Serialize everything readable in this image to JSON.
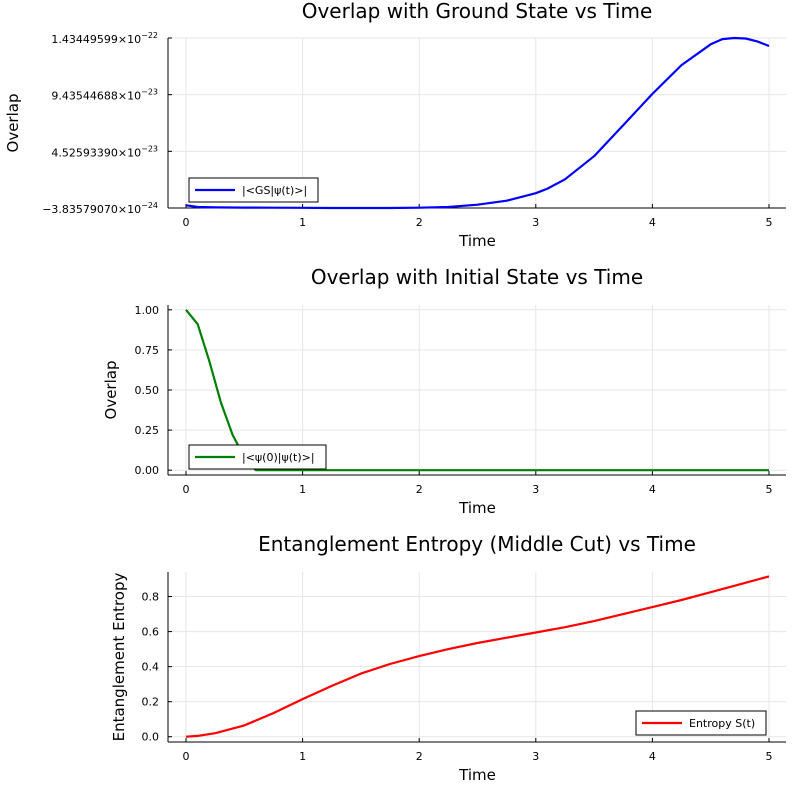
{
  "chart_data": [
    {
      "type": "line",
      "title": "Overlap with Ground State vs Time",
      "xlabel": "Time",
      "ylabel": "Overlap",
      "xlim": [
        0,
        5
      ],
      "ylim": [
        -3.8357907e-24,
        1.43449599e-22
      ],
      "x_ticks": [
        0,
        1,
        2,
        3,
        4,
        5
      ],
      "y_ticks": [
        {
          "value": -3.8357907e-24,
          "mantissa": "−3.83579070×10",
          "exp": "−24"
        },
        {
          "value": 4.5259339e-23,
          "mantissa": "4.52593390×10",
          "exp": "−23"
        },
        {
          "value": 9.43544688e-23,
          "mantissa": "9.43544688×10",
          "exp": "−23"
        },
        {
          "value": 1.43449599e-22,
          "mantissa": "1.43449599×10",
          "exp": "−22"
        }
      ],
      "legend_position": "bottom-left",
      "grid": true,
      "series": [
        {
          "name": "|<GS|ψ(t)>|",
          "color": "#0000ff",
          "x": [
            0,
            0.1,
            0.25,
            0.5,
            0.75,
            1,
            1.25,
            1.5,
            1.75,
            2,
            2.25,
            2.5,
            2.75,
            3,
            3.1,
            3.25,
            3.5,
            3.75,
            4,
            4.25,
            4.5,
            4.6,
            4.7,
            4.8,
            4.9,
            5
          ],
          "y": [
            -1.5e-24,
            -3e-24,
            -3.3e-24,
            -3.5e-24,
            -3.6e-24,
            -3.7e-24,
            -3.8e-24,
            -3.83e-24,
            -3.8e-24,
            -3.6e-24,
            -3e-24,
            -1e-24,
            2.5e-24,
            9e-24,
            1.3e-23,
            2.1e-23,
            4.1e-23,
            6.8e-23,
            9.5e-23,
            1.2e-22,
            1.38e-22,
            1.425e-22,
            1.4345e-22,
            1.43e-22,
            1.405e-22,
            1.365e-22
          ]
        }
      ]
    },
    {
      "type": "line",
      "title": "Overlap with Initial State vs Time",
      "xlabel": "Time",
      "ylabel": "Overlap",
      "xlim": [
        0,
        5
      ],
      "ylim": [
        -0.03,
        1.03
      ],
      "x_ticks": [
        0,
        1,
        2,
        3,
        4,
        5
      ],
      "y_ticks": [
        {
          "value": 0,
          "label": "0.00"
        },
        {
          "value": 0.25,
          "label": "0.25"
        },
        {
          "value": 0.5,
          "label": "0.50"
        },
        {
          "value": 0.75,
          "label": "0.75"
        },
        {
          "value": 1.0,
          "label": "1.00"
        }
      ],
      "legend_position": "bottom-left",
      "grid": true,
      "series": [
        {
          "name": "|<ψ(0)|ψ(t)>|",
          "color": "#008000",
          "x": [
            0,
            0.1,
            0.2,
            0.3,
            0.4,
            0.45,
            0.5,
            0.6,
            1,
            2,
            3,
            4,
            5
          ],
          "y": [
            1.0,
            0.91,
            0.68,
            0.42,
            0.22,
            0.15,
            0.06,
            0.0,
            0.0,
            0.0,
            0.0,
            0.0,
            0.0
          ]
        }
      ]
    },
    {
      "type": "line",
      "title": "Entanglement Entropy (Middle Cut) vs Time",
      "xlabel": "Time",
      "ylabel": "Entanglement Entropy",
      "xlim": [
        0,
        5
      ],
      "ylim": [
        -0.03,
        0.94
      ],
      "x_ticks": [
        0,
        1,
        2,
        3,
        4,
        5
      ],
      "y_ticks": [
        {
          "value": 0,
          "label": "0.0"
        },
        {
          "value": 0.2,
          "label": "0.2"
        },
        {
          "value": 0.4,
          "label": "0.4"
        },
        {
          "value": 0.6,
          "label": "0.6"
        },
        {
          "value": 0.8,
          "label": "0.8"
        }
      ],
      "legend_position": "bottom-right",
      "grid": true,
      "series": [
        {
          "name": "Entropy S(t)",
          "color": "#ff0000",
          "x": [
            0,
            0.1,
            0.25,
            0.5,
            0.75,
            1,
            1.25,
            1.5,
            1.75,
            2,
            2.25,
            2.5,
            2.75,
            3,
            3.25,
            3.5,
            3.75,
            4,
            4.25,
            4.5,
            4.75,
            5
          ],
          "y": [
            0.0,
            0.005,
            0.02,
            0.065,
            0.135,
            0.215,
            0.29,
            0.36,
            0.415,
            0.46,
            0.5,
            0.535,
            0.565,
            0.595,
            0.625,
            0.66,
            0.7,
            0.74,
            0.78,
            0.825,
            0.87,
            0.915
          ]
        }
      ]
    }
  ]
}
